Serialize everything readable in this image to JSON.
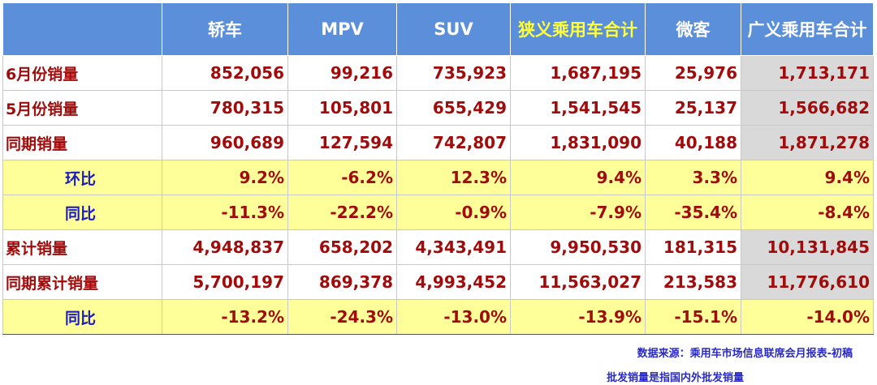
{
  "table": {
    "headers": [
      "",
      "轿车",
      "MPV",
      "SUV",
      "狭义乘用车合计",
      "微客",
      "广义乘用车合计"
    ],
    "rows": [
      {
        "label": "6月份销量",
        "values": [
          "852,056",
          "99,216",
          "735,923",
          "1,687,195",
          "25,976",
          "1,713,171"
        ],
        "type": "volume"
      },
      {
        "label": "5月份销量",
        "values": [
          "780,315",
          "105,801",
          "655,429",
          "1,541,545",
          "25,137",
          "1,566,682"
        ],
        "type": "volume"
      },
      {
        "label": "同期销量",
        "values": [
          "960,689",
          "127,594",
          "742,807",
          "1,831,090",
          "40,188",
          "1,871,278"
        ],
        "type": "volume"
      },
      {
        "label": "环比",
        "values": [
          "9.2%",
          "-6.2%",
          "12.3%",
          "9.4%",
          "3.3%",
          "9.4%"
        ],
        "type": "ratio"
      },
      {
        "label": "同比",
        "values": [
          "-11.3%",
          "-22.2%",
          "-0.9%",
          "-7.9%",
          "-35.4%",
          "-8.4%"
        ],
        "type": "ratio"
      },
      {
        "label": "累计销量",
        "values": [
          "4,948,837",
          "658,202",
          "4,343,491",
          "9,950,530",
          "181,315",
          "10,131,845"
        ],
        "type": "volume"
      },
      {
        "label": "同期累计销量",
        "values": [
          "5,700,197",
          "869,378",
          "4,993,452",
          "11,563,027",
          "213,583",
          "11,776,610"
        ],
        "type": "volume"
      },
      {
        "label": "同比",
        "values": [
          "-13.2%",
          "-24.3%",
          "-13.0%",
          "-13.9%",
          "-15.1%",
          "-14.0%"
        ],
        "type": "ratio"
      }
    ]
  },
  "notes": {
    "source": "数据来源：乘用车市场信息联席会月报表-初稿",
    "definition": "批发销量是指国内外批发销量"
  },
  "colors": {
    "header_bg": "#5b8fd9",
    "header_text": "#ffffff",
    "header_highlight_text": "#ffff3a",
    "value_text": "#a00c0c",
    "ratio_label_text": "#1a1ac8",
    "ratio_row_bg": "#ffff9a",
    "total_column_bg": "#d9d9d9"
  }
}
